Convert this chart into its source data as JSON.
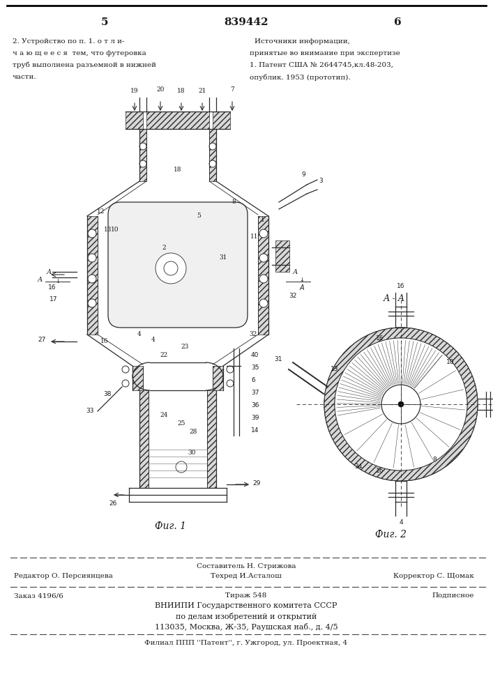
{
  "page_number_left": "5",
  "page_number_center": "839442",
  "page_number_right": "6",
  "top_left_text": [
    "2. Устройство по п. 1. о т л и-",
    "ч а ю щ е е с я  тем, что футеровка",
    "труб выполнена разъемной в нижней",
    "части."
  ],
  "top_right_title": "Источники информации,",
  "top_right_text": [
    "принятые во внимание при экспертизе",
    "1. Патент США № 2644745,кл.48-203,",
    "опублик. 1953 (прототип)."
  ],
  "fig1_label": "Фиг. 1",
  "fig2_label": "Фиг. 2",
  "fig2_section_label": "А - А",
  "footer_editor": "Редактор О. Персиянцева",
  "footer_composer_title": "Составитель Н. Стрижова",
  "footer_techred": "Техред И.Асталош",
  "footer_corrector": "Корректор С. Щомак",
  "footer_order": "Заказ 4196/6",
  "footer_tirazh": "Тираж 548",
  "footer_podpisnoe": "Подписное",
  "footer_vniipи": "ВНИИПИ Государственного комитета СССР",
  "footer_po_delam": "по делам изобретений и открытий",
  "footer_address": "113035, Москва, Ж-35, Раушская наб., д. 4/5",
  "footer_filial": "Филиал ППП ''Патент'', г. Ужгород, ул. Проектная, 4",
  "bg_color": "#ffffff",
  "text_color": "#1a1a1a",
  "line_color": "#2a2a2a",
  "hatch_color": "#888888"
}
